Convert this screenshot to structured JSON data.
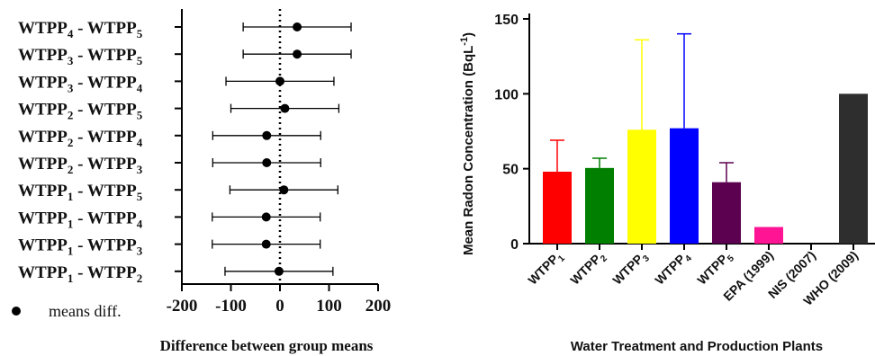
{
  "chart_data": [
    {
      "type": "scatter",
      "subtype": "forest-plot",
      "title": "",
      "xlabel": "Difference between group means",
      "ylabel": "",
      "xlim": [
        -200,
        200
      ],
      "xticks": [
        "-200",
        "-100",
        "0",
        "100",
        "200"
      ],
      "reference_line": 0,
      "legend": {
        "label": "means diff.",
        "placement": "bottom-left",
        "marker": "filled-circle"
      },
      "rows": [
        {
          "label": "WTPP4 - WTPP5",
          "pair": [
            "4",
            "5"
          ],
          "mean": 35,
          "low": -75,
          "high": 145
        },
        {
          "label": "WTPP3 - WTPP5",
          "pair": [
            "3",
            "5"
          ],
          "mean": 35,
          "low": -75,
          "high": 145
        },
        {
          "label": "WTPP3 - WTPP4",
          "pair": [
            "3",
            "4"
          ],
          "mean": 0,
          "low": -110,
          "high": 110
        },
        {
          "label": "WTPP2 - WTPP5",
          "pair": [
            "2",
            "5"
          ],
          "mean": 10,
          "low": -100,
          "high": 120
        },
        {
          "label": "WTPP2 - WTPP4",
          "pair": [
            "2",
            "4"
          ],
          "mean": -27,
          "low": -137,
          "high": 83
        },
        {
          "label": "WTPP2 - WTPP3",
          "pair": [
            "2",
            "3"
          ],
          "mean": -27,
          "low": -137,
          "high": 83
        },
        {
          "label": "WTPP1 - WTPP5",
          "pair": [
            "1",
            "5"
          ],
          "mean": 8,
          "low": -102,
          "high": 118
        },
        {
          "label": "WTPP1 - WTPP4",
          "pair": [
            "1",
            "4"
          ],
          "mean": -28,
          "low": -138,
          "high": 82
        },
        {
          "label": "WTPP1 - WTPP3",
          "pair": [
            "1",
            "3"
          ],
          "mean": -28,
          "low": -138,
          "high": 82
        },
        {
          "label": "WTPP1 - WTPP2",
          "pair": [
            "1",
            "2"
          ],
          "mean": -2,
          "low": -112,
          "high": 108
        }
      ]
    },
    {
      "type": "bar",
      "title": "",
      "xlabel": "Water Treatment and Production Plants",
      "ylabel": "Mean Radon Concentration (BqL",
      "ylabel_sup": "-1",
      "ylabel_tail": ")",
      "ylim": [
        0,
        150
      ],
      "yticks": [
        "0",
        "50",
        "100",
        "150"
      ],
      "categories": [
        "WTPP1",
        "WTPP2",
        "WTPP3",
        "WTPP4",
        "WTPP5",
        "EPA (1999)",
        "NIS (2007)",
        "WHO (2009)"
      ],
      "category_display": [
        {
          "base": "WTPP",
          "sub": "1"
        },
        {
          "base": "WTPP",
          "sub": "2"
        },
        {
          "base": "WTPP",
          "sub": "3"
        },
        {
          "base": "WTPP",
          "sub": "4"
        },
        {
          "base": "WTPP",
          "sub": "5"
        },
        {
          "base": "EPA (1999)",
          "sub": ""
        },
        {
          "base": "NIS (2007)",
          "sub": ""
        },
        {
          "base": "WHO (2009)",
          "sub": ""
        }
      ],
      "values": [
        48,
        50.5,
        76,
        77,
        41,
        11.1,
        0,
        100
      ],
      "errors": [
        21,
        6.5,
        60,
        63,
        13,
        null,
        null,
        null
      ],
      "colors": [
        "#ff0000",
        "#007f00",
        "#ffff00",
        "#0000ff",
        "#5c0050",
        "#ff1493",
        "#ffffff",
        "#2e2e2e"
      ],
      "grid": false
    }
  ]
}
